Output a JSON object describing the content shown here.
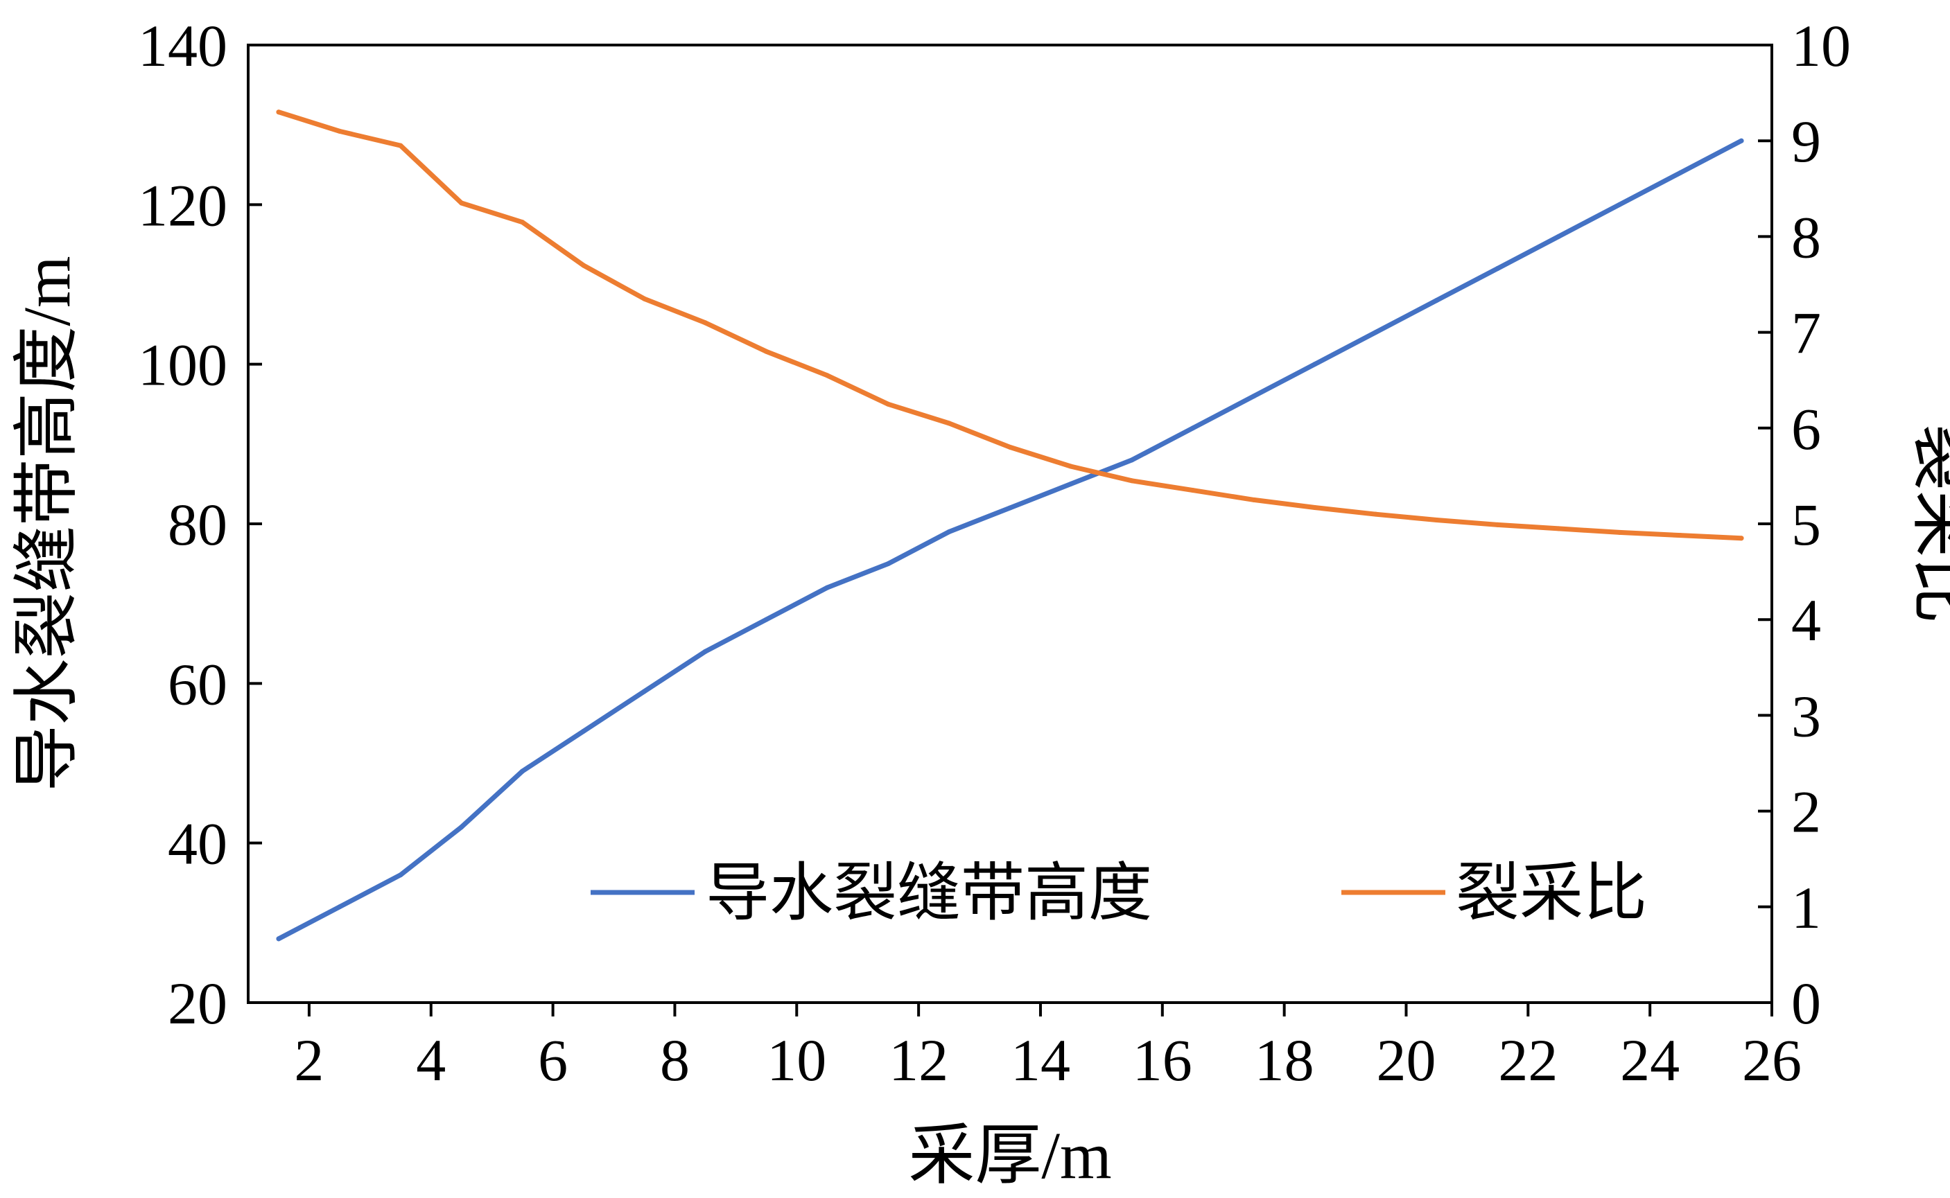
{
  "chart_data": {
    "type": "line",
    "xlabel": "采厚/m",
    "ylabel_left": "导水裂缝带高度/m",
    "ylabel_right": "裂采比",
    "xlim": [
      1,
      26
    ],
    "ylim_left": [
      20,
      140
    ],
    "ylim_right": [
      0,
      10
    ],
    "x_ticks": [
      "2",
      "4",
      "6",
      "8",
      "10",
      "12",
      "14",
      "16",
      "18",
      "20",
      "22",
      "24",
      "26"
    ],
    "y_left_ticks": [
      "20",
      "40",
      "60",
      "80",
      "100",
      "120",
      "140"
    ],
    "y_right_ticks": [
      "0",
      "1",
      "2",
      "3",
      "4",
      "5",
      "6",
      "7",
      "8",
      "9",
      "10"
    ],
    "grid": false,
    "legend_position": "bottom-right",
    "series": [
      {
        "name": "导水裂缝带高度",
        "axis": "left",
        "color": "#4472c4",
        "x": [
          1.5,
          2.5,
          3.5,
          4.5,
          5.5,
          6.5,
          7.5,
          8.5,
          9.5,
          10.5,
          11.5,
          12.5,
          13.5,
          14.5,
          15.5,
          16.5,
          17.5,
          18.5,
          19.5,
          20.5,
          21.5,
          22.5,
          23.5,
          24.5,
          25.5
        ],
        "values": [
          28,
          32,
          36,
          42,
          49,
          54,
          59,
          64,
          68,
          72,
          75,
          79,
          82,
          85,
          88,
          92,
          96,
          100,
          104,
          108,
          112,
          116,
          120,
          124,
          128
        ]
      },
      {
        "name": "裂采比",
        "axis": "right",
        "color": "#ed7d31",
        "x": [
          1.5,
          2.5,
          3.5,
          4.5,
          5.5,
          6.5,
          7.5,
          8.5,
          9.5,
          10.5,
          11.5,
          12.5,
          13.5,
          14.5,
          15.5,
          16.5,
          17.5,
          18.5,
          19.5,
          20.5,
          21.5,
          22.5,
          23.5,
          24.5,
          25.5
        ],
        "values": [
          9.3,
          9.1,
          8.95,
          8.35,
          8.15,
          7.7,
          7.35,
          7.1,
          6.8,
          6.55,
          6.25,
          6.05,
          5.8,
          5.6,
          5.45,
          5.35,
          5.25,
          5.17,
          5.1,
          5.04,
          4.99,
          4.95,
          4.91,
          4.88,
          4.85
        ]
      }
    ]
  }
}
